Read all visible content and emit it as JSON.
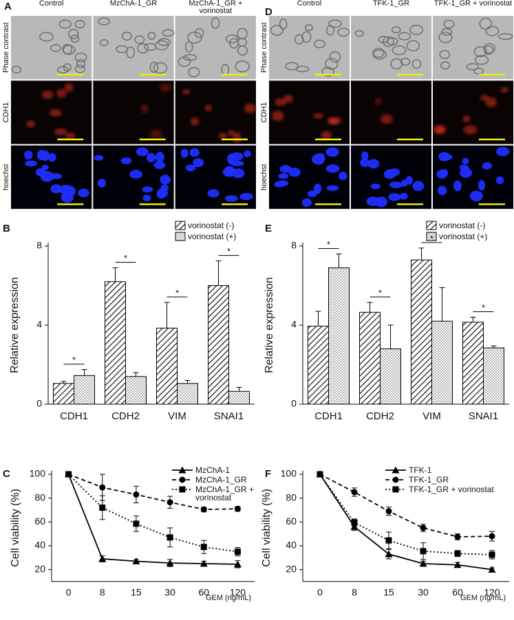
{
  "panels": [
    {
      "letter": "A",
      "columns": [
        "Control",
        "MzChA-1_GR",
        "MzChA-1_GR + vorinostat"
      ],
      "rows": [
        "Phase contrast",
        "CDH1",
        "hoechst"
      ]
    },
    {
      "letter": "D",
      "columns": [
        "Control",
        "TFK-1_GR",
        "TFK-1_GR + vorinostat"
      ],
      "rows": [
        "Phase contrast",
        "CDH1",
        "hoechst"
      ]
    }
  ],
  "chart_data": [
    {
      "letter": "B",
      "type": "bar",
      "ylabel": "Relative expression",
      "categories": [
        "CDH1",
        "CDH2",
        "VIM",
        "SNAI1"
      ],
      "series": [
        {
          "name": "vorinostat (-)",
          "pattern": "hatch",
          "color": "#000000",
          "values": [
            1.05,
            6.2,
            3.85,
            6.0
          ],
          "errors": [
            0.1,
            0.7,
            1.3,
            1.25
          ]
        },
        {
          "name": "vorinostat (+)",
          "pattern": "dots",
          "color": "#000000",
          "values": [
            1.45,
            1.4,
            1.05,
            0.65
          ],
          "errors": [
            0.3,
            0.2,
            0.15,
            0.2
          ]
        }
      ],
      "annotations": [
        "*",
        "*",
        "*",
        "*"
      ],
      "ylim": [
        0,
        8
      ],
      "yticks": [
        0,
        4,
        8
      ],
      "legend": "upper right"
    },
    {
      "letter": "E",
      "type": "bar",
      "ylabel": "Relative expression",
      "categories": [
        "CDH1",
        "CDH2",
        "VIM",
        "SNAI1"
      ],
      "series": [
        {
          "name": "vorinostat (-)",
          "pattern": "hatch",
          "color": "#000000",
          "values": [
            3.95,
            4.65,
            7.3,
            4.15
          ],
          "errors": [
            0.75,
            0.5,
            0.6,
            0.25
          ]
        },
        {
          "name": "vorinostat (+)",
          "pattern": "dots",
          "color": "#000000",
          "values": [
            6.9,
            2.8,
            4.2,
            2.85
          ],
          "errors": [
            0.7,
            1.2,
            1.7,
            0.1
          ]
        }
      ],
      "annotations": [
        "*",
        "*",
        "*",
        "*"
      ],
      "ylim": [
        0,
        8
      ],
      "yticks": [
        0,
        4,
        8
      ],
      "legend": "upper right"
    },
    {
      "letter": "C",
      "type": "line",
      "ylabel": "Cell viability (%)",
      "xlabel": "GEM (ng/mL)",
      "categories": [
        "0",
        "8",
        "15",
        "30",
        "60",
        "120"
      ],
      "series": [
        {
          "name": "MzChA-1",
          "line_style": "solid",
          "marker": "triangle",
          "color": "#000000",
          "values": [
            100,
            29,
            27,
            25.5,
            25,
            24.5
          ],
          "errors": [
            0,
            2.5,
            1.5,
            3,
            2,
            3
          ]
        },
        {
          "name": "MzChA-1_GR",
          "line_style": "dashed",
          "marker": "circle",
          "color": "#000000",
          "values": [
            100,
            89,
            83,
            76.5,
            70.5,
            71
          ],
          "errors": [
            0,
            11,
            7,
            5,
            2,
            2
          ]
        },
        {
          "name": "MzChA-1_GR + vorinostat",
          "line_style": "dotted",
          "marker": "square",
          "color": "#000000",
          "values": [
            100,
            72,
            58.5,
            47,
            39,
            35
          ],
          "errors": [
            0,
            10,
            6.5,
            8,
            5.5,
            3.5
          ]
        }
      ],
      "ylim": [
        10,
        100
      ],
      "yticks": [
        20,
        40,
        60,
        80,
        100
      ],
      "legend": "upper right"
    },
    {
      "letter": "F",
      "type": "line",
      "ylabel": "Cell viability (%)",
      "xlabel": "GEM (ng/mL)",
      "categories": [
        "0",
        "8",
        "15",
        "30",
        "60",
        "120"
      ],
      "series": [
        {
          "name": "TFK-1",
          "line_style": "solid",
          "marker": "triangle",
          "color": "#000000",
          "values": [
            100,
            56,
            33,
            25,
            24,
            20
          ],
          "errors": [
            0,
            3,
            4,
            2,
            2,
            1.5
          ]
        },
        {
          "name": "TFK-1_GR",
          "line_style": "dashed",
          "marker": "circle",
          "color": "#000000",
          "values": [
            100,
            85,
            69,
            55,
            47.5,
            48
          ],
          "errors": [
            0,
            3.5,
            3.5,
            3,
            2.5,
            4
          ]
        },
        {
          "name": "TFK-1_GR + vorinostat",
          "line_style": "dotted",
          "marker": "square",
          "color": "#000000",
          "values": [
            100,
            59.5,
            44.5,
            35.5,
            33.5,
            32.5
          ],
          "errors": [
            0,
            3,
            7,
            7,
            2.5,
            3.5
          ]
        }
      ],
      "ylim": [
        10,
        100
      ],
      "yticks": [
        20,
        40,
        60,
        80,
        100
      ],
      "legend": "upper right"
    }
  ]
}
